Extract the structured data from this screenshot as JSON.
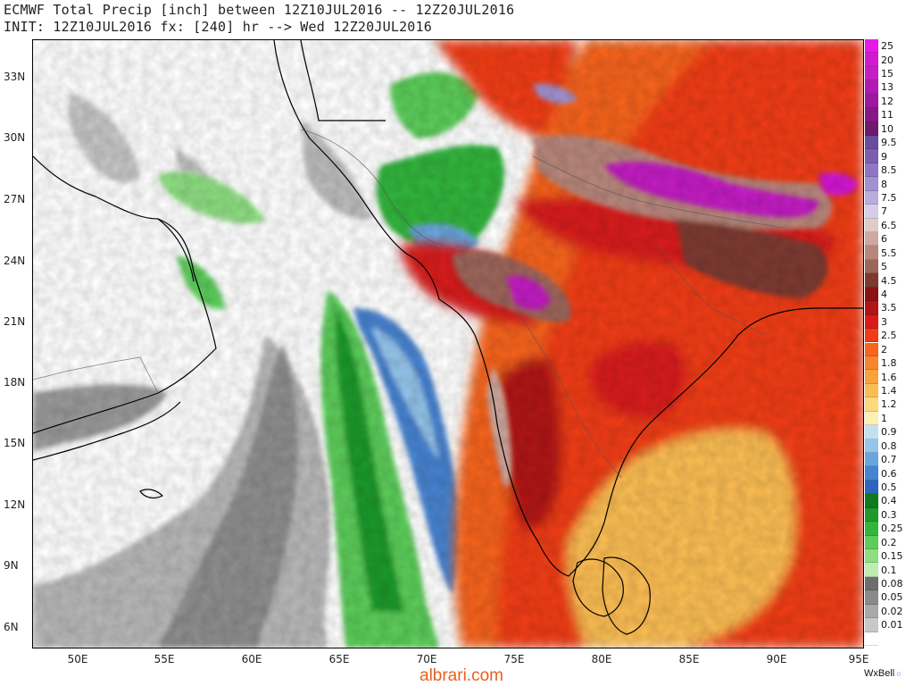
{
  "header": {
    "line1": "ECMWF Total Precip [inch] between 12Z10JUL2016 -- 12Z20JUL2016",
    "line2": "INIT: 12Z10JUL2016 fx: [240] hr --> Wed 12Z20JUL2016"
  },
  "axes": {
    "lat_labels": [
      "33N",
      "30N",
      "27N",
      "24N",
      "21N",
      "18N",
      "15N",
      "12N",
      "9N",
      "6N"
    ],
    "lon_labels": [
      "50E",
      "55E",
      "60E",
      "65E",
      "70E",
      "75E",
      "80E",
      "85E",
      "90E",
      "95E"
    ]
  },
  "legend": {
    "items": [
      {
        "label": "25",
        "color": "#e619e6"
      },
      {
        "label": "20",
        "color": "#d219d2"
      },
      {
        "label": "15",
        "color": "#c31fc3"
      },
      {
        "label": "13",
        "color": "#b01ab0"
      },
      {
        "label": "12",
        "color": "#9c189c"
      },
      {
        "label": "11",
        "color": "#861786"
      },
      {
        "label": "10",
        "color": "#6e1a6e"
      },
      {
        "label": "9.5",
        "color": "#6a4c9c"
      },
      {
        "label": "9",
        "color": "#7a5fb0"
      },
      {
        "label": "8.5",
        "color": "#8d76c2"
      },
      {
        "label": "8",
        "color": "#a291cf"
      },
      {
        "label": "7.5",
        "color": "#b8aedd"
      },
      {
        "label": "7",
        "color": "#d6cde8"
      },
      {
        "label": "6.5",
        "color": "#e0ccc6"
      },
      {
        "label": "6",
        "color": "#cfa99f"
      },
      {
        "label": "5.5",
        "color": "#b8877c"
      },
      {
        "label": "5",
        "color": "#9c665b"
      },
      {
        "label": "4.5",
        "color": "#7d3a30"
      },
      {
        "label": "4",
        "color": "#8b1212"
      },
      {
        "label": "3.5",
        "color": "#b01414"
      },
      {
        "label": "3",
        "color": "#d81a1a"
      },
      {
        "label": "2.5",
        "color": "#f03c14"
      },
      {
        "label": "2",
        "color": "#f6641e"
      },
      {
        "label": "1.8",
        "color": "#f7852b"
      },
      {
        "label": "1.6",
        "color": "#f9a23a"
      },
      {
        "label": "1.4",
        "color": "#fbbd52"
      },
      {
        "label": "1.2",
        "color": "#fcd97c"
      },
      {
        "label": "1",
        "color": "#fdf0b4"
      },
      {
        "label": "0.9",
        "color": "#c2e0f2"
      },
      {
        "label": "0.8",
        "color": "#95c5ea"
      },
      {
        "label": "0.7",
        "color": "#6aa6de"
      },
      {
        "label": "0.6",
        "color": "#4683d0"
      },
      {
        "label": "0.5",
        "color": "#2d64c0"
      },
      {
        "label": "0.4",
        "color": "#0f7a1e"
      },
      {
        "label": "0.3",
        "color": "#1f9a2a"
      },
      {
        "label": "0.25",
        "color": "#33b43d"
      },
      {
        "label": "0.2",
        "color": "#5ccc5a"
      },
      {
        "label": "0.15",
        "color": "#8ede82"
      },
      {
        "label": "0.1",
        "color": "#bdeeb0"
      },
      {
        "label": "0.08",
        "color": "#6e6e6e"
      },
      {
        "label": "0.05",
        "color": "#8a8a8a"
      },
      {
        "label": "0.02",
        "color": "#a8a8a8"
      },
      {
        "label": "0.01",
        "color": "#c8c8c8"
      },
      {
        "label": "",
        "color": "#ffffff"
      }
    ]
  },
  "footer": {
    "watermark": "albrari.com",
    "brand": "WxBell"
  }
}
